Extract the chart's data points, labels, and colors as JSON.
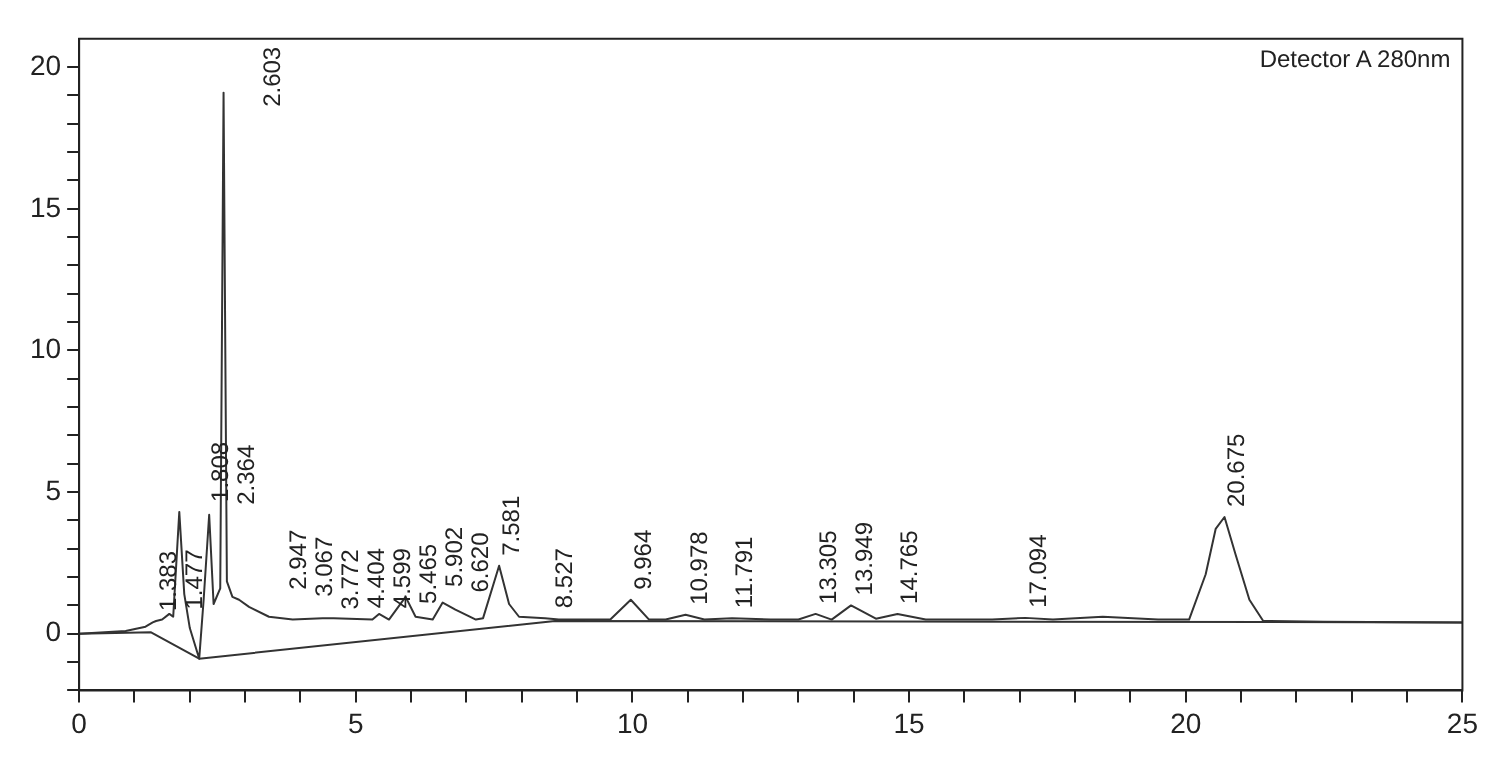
{
  "chart_data": {
    "type": "line",
    "xlim": [
      0,
      25
    ],
    "ylim": [
      -2,
      21
    ],
    "xticks": [
      0,
      {
        "value": 1,
        "label": null
      },
      {
        "value": 2,
        "label": null
      },
      {
        "value": 3,
        "label": null
      },
      {
        "value": 4,
        "label": null
      },
      5,
      {
        "value": 6,
        "label": null
      },
      {
        "value": 7,
        "label": null
      },
      {
        "value": 8,
        "label": null
      },
      {
        "value": 9,
        "label": null
      },
      10,
      {
        "value": 11,
        "label": null
      },
      {
        "value": 12,
        "label": null
      },
      {
        "value": 13,
        "label": null
      },
      {
        "value": 14,
        "label": null
      },
      15,
      {
        "value": 16,
        "label": null
      },
      {
        "value": 17,
        "label": null
      },
      {
        "value": 18,
        "label": null
      },
      {
        "value": 19,
        "label": null
      },
      20,
      {
        "value": 21,
        "label": null
      },
      {
        "value": 22,
        "label": null
      },
      {
        "value": 23,
        "label": null
      },
      {
        "value": 24,
        "label": null
      },
      25
    ],
    "yticks": [
      {
        "value": -2,
        "label": null
      },
      {
        "value": -1,
        "label": null
      },
      0,
      {
        "value": 1,
        "label": null
      },
      {
        "value": 2,
        "label": null
      },
      {
        "value": 3,
        "label": null
      },
      {
        "value": 4,
        "label": null
      },
      5,
      {
        "value": 6,
        "label": null
      },
      {
        "value": 7,
        "label": null
      },
      {
        "value": 8,
        "label": null
      },
      {
        "value": 9,
        "label": null
      },
      10,
      {
        "value": 11,
        "label": null
      },
      {
        "value": 12,
        "label": null
      },
      {
        "value": 13,
        "label": null
      },
      {
        "value": 14,
        "label": null
      },
      15,
      {
        "value": 16,
        "label": null
      },
      {
        "value": 17,
        "label": null
      },
      {
        "value": 18,
        "label": null
      },
      {
        "value": 19,
        "label": null
      },
      20
    ],
    "grid": false,
    "legend": false,
    "marker": "none",
    "series": [
      {
        "color": "#333333",
        "x": [
          0,
          0.84,
          1.2,
          1.33,
          1.39,
          1.5,
          1.63,
          1.7,
          1.81,
          1.9,
          2.0,
          2.17,
          2.25,
          2.35,
          2.43,
          2.55,
          2.61,
          2.67,
          2.77,
          2.89,
          3.07,
          3.43,
          3.86,
          4.4,
          4.6,
          5.3,
          5.42,
          5.6,
          5.9,
          6.08,
          6.39,
          6.57,
          6.8,
          7.17,
          7.3,
          7.59,
          7.77,
          7.95,
          8.42,
          8.67,
          9.6,
          9.97,
          10.3,
          10.6,
          10.96,
          11.3,
          11.8,
          12.5,
          13.0,
          13.31,
          13.6,
          13.95,
          14.4,
          14.79,
          15.3,
          16.5,
          17.1,
          17.6,
          18.5,
          19.5,
          20.06,
          20.36,
          20.54,
          20.7,
          20.9,
          21.15,
          21.4,
          22.5,
          25
        ],
        "values": [
          0,
          0.1,
          0.25,
          0.4,
          0.45,
          0.5,
          0.7,
          0.6,
          4.3,
          1.4,
          0.2,
          -0.88,
          1.2,
          4.2,
          1.05,
          1.6,
          19.1,
          1.85,
          1.3,
          1.2,
          0.95,
          0.6,
          0.5,
          0.55,
          0.55,
          0.5,
          0.7,
          0.5,
          1.3,
          0.6,
          0.5,
          1.1,
          0.85,
          0.5,
          0.55,
          2.4,
          1.05,
          0.6,
          0.55,
          0.5,
          0.5,
          1.2,
          0.5,
          0.5,
          0.67,
          0.5,
          0.55,
          0.5,
          0.5,
          0.7,
          0.5,
          1.0,
          0.53,
          0.7,
          0.5,
          0.5,
          0.56,
          0.5,
          0.6,
          0.5,
          0.5,
          2.1,
          3.7,
          4.12,
          2.8,
          1.2,
          0.45,
          0.42,
          0.4
        ]
      },
      {
        "color": "#333333",
        "x": [
          0,
          1.3,
          2.17,
          8.6,
          25
        ],
        "values": [
          0,
          0.05,
          -0.88,
          0.45,
          0.4
        ]
      }
    ],
    "annotations": [
      "Detector A 280nm",
      {
        "text": "1.383",
        "x": 1.383,
        "y": 0.45
      },
      {
        "text": "1.477",
        "x": 1.477,
        "y": 0.5
      },
      {
        "text": "1.808",
        "x": 1.808,
        "y": 4.3
      },
      {
        "text": "2.364",
        "x": 2.364,
        "y": 4.2
      },
      {
        "text": "2.603",
        "x": 2.603,
        "y": 19.1
      },
      {
        "text": "2.947",
        "x": 2.947,
        "y": 1.2
      },
      {
        "text": "3.067",
        "x": 3.067,
        "y": 0.95
      },
      {
        "text": "3.772",
        "x": 3.772,
        "y": 0.5
      },
      {
        "text": "4.404",
        "x": 4.404,
        "y": 0.55
      },
      {
        "text": "4.599",
        "x": 4.599,
        "y": 0.55
      },
      {
        "text": "5.465",
        "x": 5.465,
        "y": 0.7
      },
      {
        "text": "5.902",
        "x": 5.902,
        "y": 1.3
      },
      {
        "text": "6.620",
        "x": 6.62,
        "y": 1.1
      },
      {
        "text": "7.581",
        "x": 7.581,
        "y": 2.4
      },
      {
        "text": "8.527",
        "x": 8.527,
        "y": 0.55
      },
      {
        "text": "9.964",
        "x": 9.964,
        "y": 1.2
      },
      {
        "text": "10.978",
        "x": 10.978,
        "y": 0.67
      },
      {
        "text": "11.791",
        "x": 11.791,
        "y": 0.55
      },
      {
        "text": "13.305",
        "x": 13.305,
        "y": 0.7
      },
      {
        "text": "13.949",
        "x": 13.949,
        "y": 1.0
      },
      {
        "text": "14.765",
        "x": 14.765,
        "y": 0.7
      },
      {
        "text": "17.094",
        "x": 17.094,
        "y": 0.56
      },
      {
        "text": "20.675",
        "x": 20.675,
        "y": 4.12
      }
    ]
  }
}
